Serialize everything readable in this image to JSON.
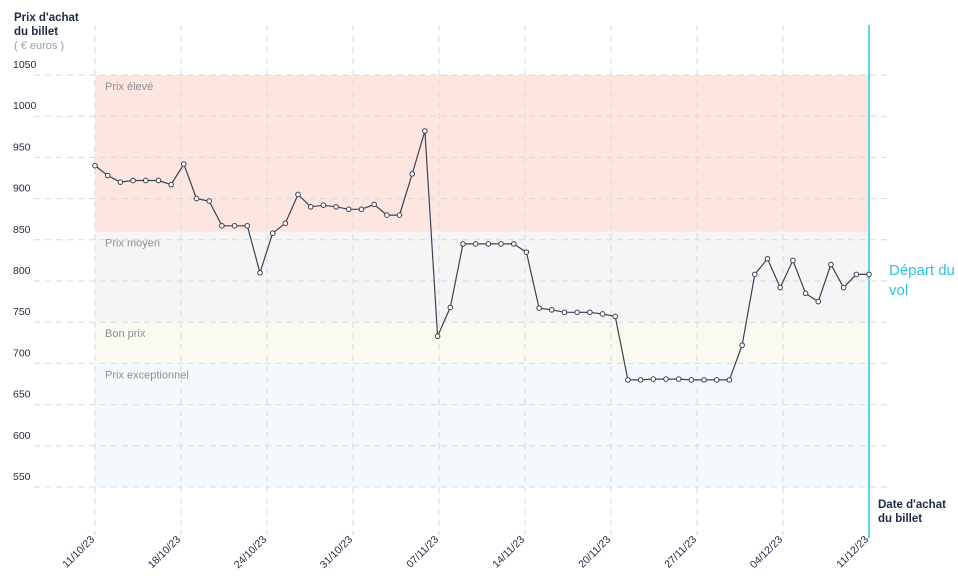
{
  "chart_data": {
    "type": "line",
    "ylabel": "Prix d'achat du billet",
    "yunit": "( € euros )",
    "xlabel": "Date d'achat du billet",
    "departure_label": "Départ du vol",
    "ylim": [
      500,
      1080
    ],
    "y_ticks": [
      550,
      600,
      650,
      700,
      750,
      800,
      850,
      900,
      950,
      1000,
      1050
    ],
    "x_ticks": [
      "11/10/23",
      "18/10/23",
      "24/10/23",
      "31/10/23",
      "07/11/23",
      "14/11/23",
      "20/11/23",
      "27/11/23",
      "04/12/23",
      "11/12/23"
    ],
    "grid": true,
    "zones": [
      {
        "label": "Prix élevé",
        "from": 860,
        "to": 1050,
        "color": "#fde6df"
      },
      {
        "label": "Prix moyen",
        "from": 750,
        "to": 860,
        "color": "#f5f5f5"
      },
      {
        "label": "Bon prix",
        "from": 700,
        "to": 750,
        "color": "#fafaf0"
      },
      {
        "label": "Prix exceptionnel",
        "from": 550,
        "to": 700,
        "color": "#f3f9fd"
      }
    ],
    "colors": {
      "line": "#3a4256",
      "departure": "#2bc4df",
      "grid": "#d6d9de",
      "axis_text": "#1f2a44"
    },
    "series": [
      {
        "x": [
          "11/10/23",
          "12/10/23",
          "13/10/23",
          "14/10/23",
          "15/10/23",
          "16/10/23",
          "17/10/23",
          "18/10/23",
          "19/10/23",
          "20/10/23",
          "21/10/23",
          "22/10/23",
          "23/10/23",
          "24/10/23",
          "25/10/23",
          "26/10/23",
          "27/10/23",
          "28/10/23",
          "29/10/23",
          "30/10/23",
          "31/10/23",
          "01/11/23",
          "02/11/23",
          "03/11/23",
          "04/11/23",
          "05/11/23",
          "06/11/23",
          "07/11/23",
          "08/11/23",
          "09/11/23",
          "10/11/23",
          "11/11/23",
          "12/11/23",
          "13/11/23",
          "14/11/23",
          "15/11/23",
          "16/11/23",
          "17/11/23",
          "18/11/23",
          "19/11/23",
          "20/11/23",
          "21/11/23",
          "22/11/23",
          "23/11/23",
          "24/11/23",
          "25/11/23",
          "26/11/23",
          "27/11/23",
          "28/11/23",
          "29/11/23",
          "30/11/23",
          "01/12/23",
          "02/12/23",
          "03/12/23",
          "04/12/23",
          "05/12/23",
          "06/12/23",
          "07/12/23",
          "08/12/23",
          "09/12/23",
          "10/12/23",
          "11/12/23"
        ],
        "values": [
          940,
          928,
          920,
          922,
          922,
          922,
          917,
          942,
          900,
          897,
          867,
          867,
          867,
          810,
          858,
          870,
          905,
          890,
          892,
          890,
          887,
          887,
          893,
          880,
          880,
          930,
          982,
          733,
          768,
          845,
          845,
          845,
          845,
          845,
          835,
          767,
          765,
          762,
          762,
          762,
          760,
          757,
          680,
          680,
          681,
          681,
          681,
          680,
          680,
          680,
          680,
          722,
          808,
          827,
          792,
          825,
          785,
          775,
          820,
          792,
          808,
          808
        ]
      }
    ]
  }
}
